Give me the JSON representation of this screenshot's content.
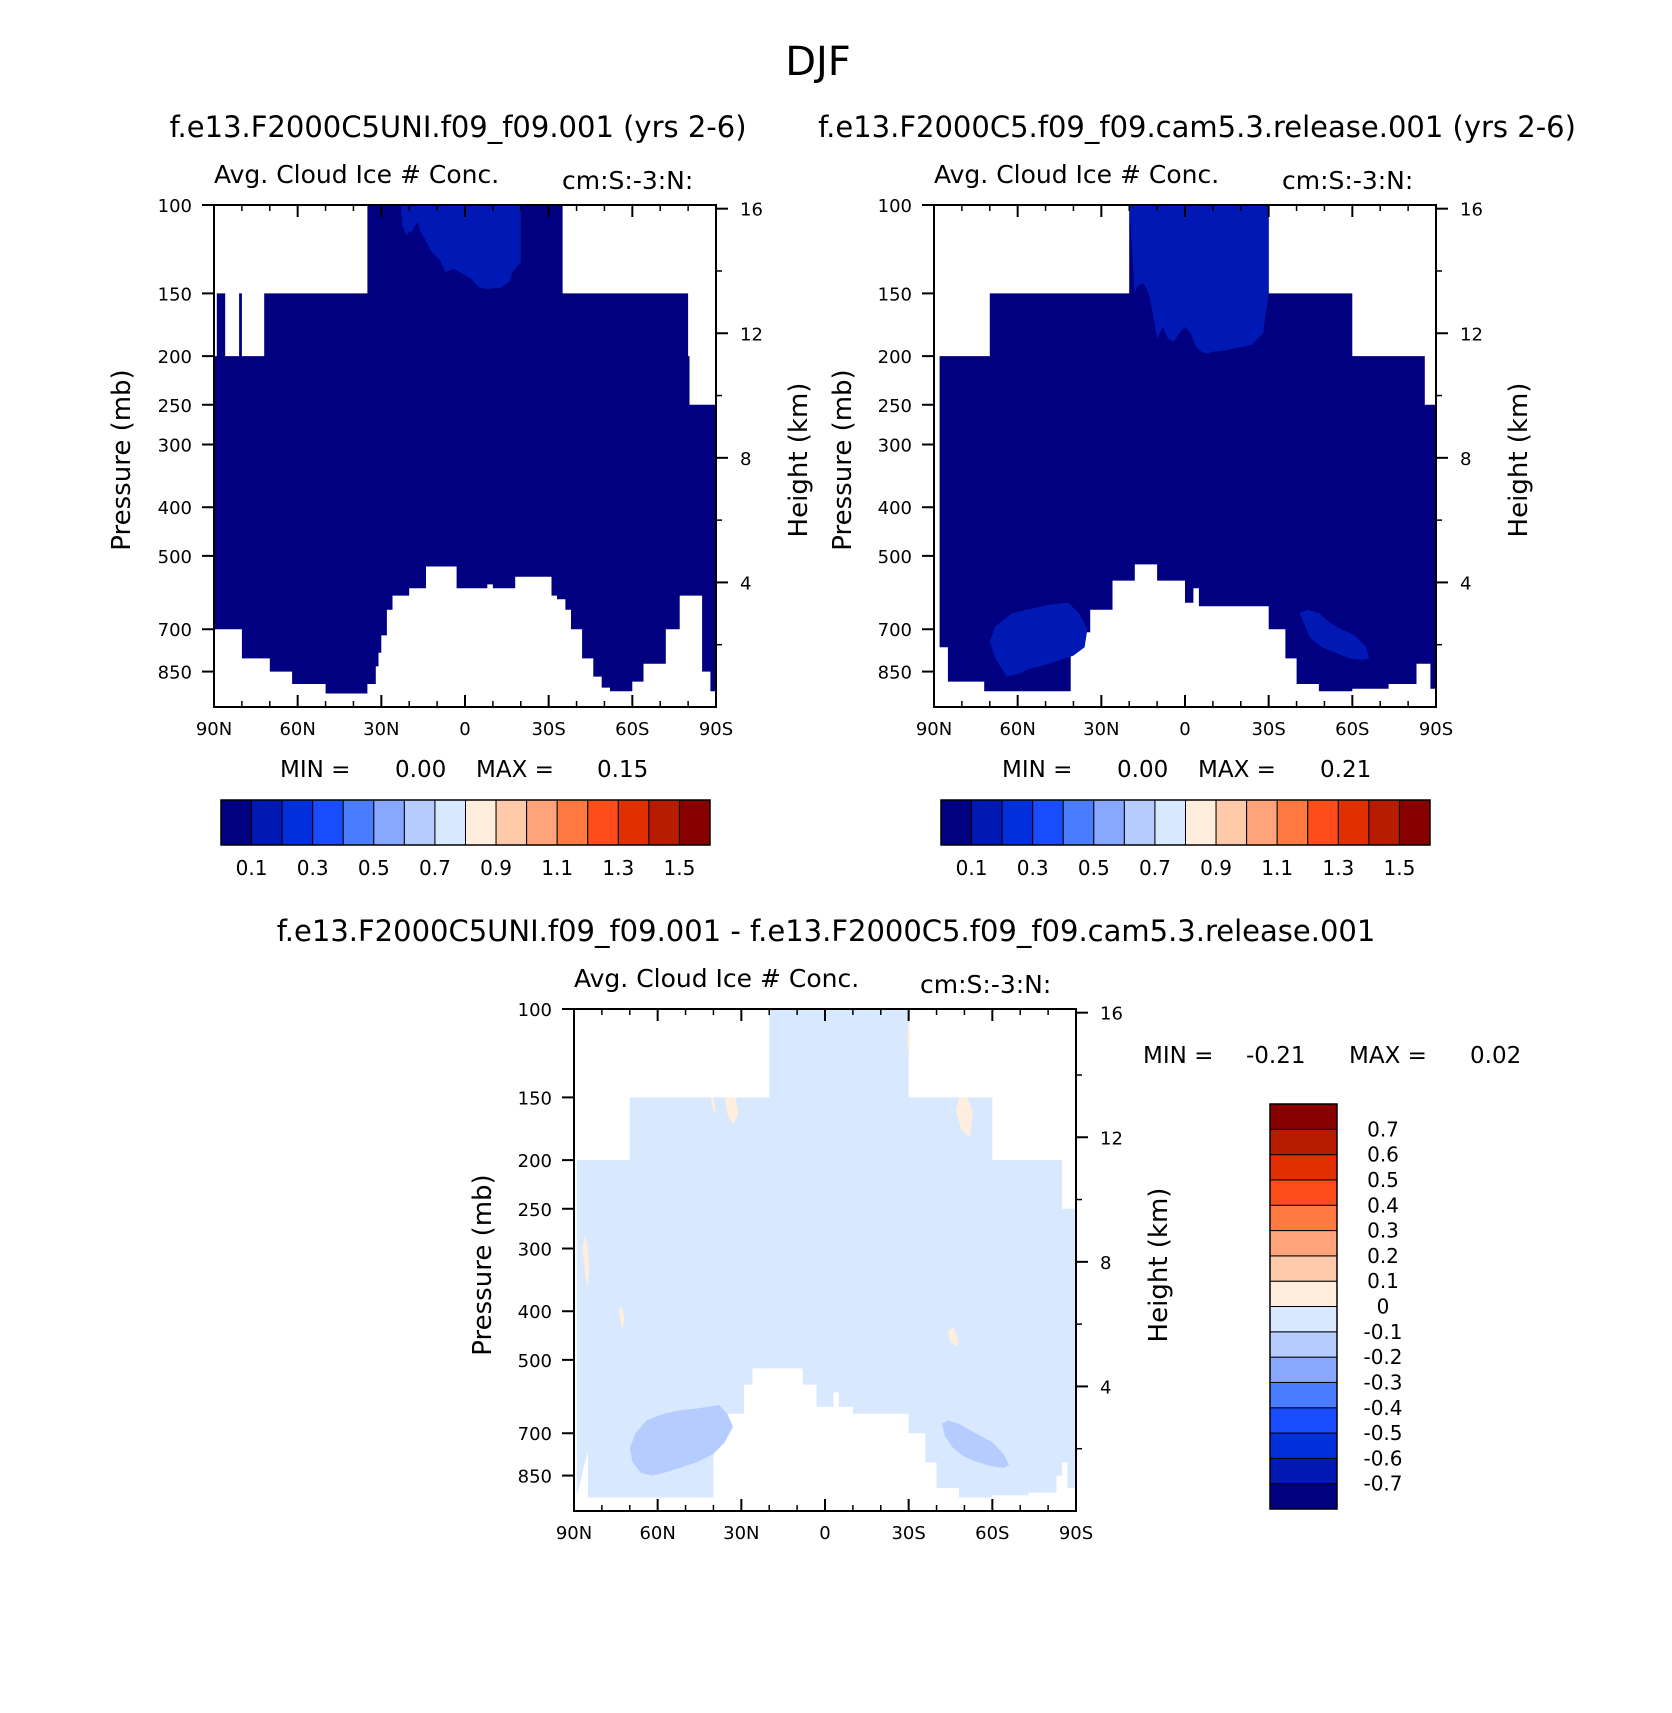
{
  "main_title": "DJF",
  "colors": {
    "white": "#ffffff",
    "abs_palette": [
      "#000080",
      "#0018b4",
      "#0030dc",
      "#1a4cff",
      "#4a7cff",
      "#88a8ff",
      "#b6ccff",
      "#d8e8ff",
      "#ffeedd",
      "#ffcaaa",
      "#ffa47a",
      "#ff7a40",
      "#ff4c1a",
      "#e03000",
      "#b81c00",
      "#880000"
    ],
    "diff_palette": [
      "#000080",
      "#0018b4",
      "#0030dc",
      "#1a4cff",
      "#4a7cff",
      "#88a8ff",
      "#b6ccff",
      "#d8e8ff",
      "#ffeedd",
      "#ffcaaa",
      "#ffa47a",
      "#ff7a40",
      "#ff4c1a",
      "#e03000",
      "#b81c00",
      "#880000"
    ]
  },
  "chart_data": [
    {
      "type": "heatmap",
      "name": "test-case",
      "panel_title": "f.e13.F2000C5UNI.f09_f09.001 (yrs 2-6)",
      "title": "Avg. Cloud Ice # Conc.",
      "units": "cm:S:-3:N:",
      "xlabel": "",
      "ylabel": "Pressure (mb)",
      "ylabel_right": "Height (km)",
      "x_ticks": [
        "90N",
        "60N",
        "30N",
        "0",
        "30S",
        "60S",
        "90S"
      ],
      "x_tick_values": [
        90,
        60,
        30,
        0,
        -30,
        -60,
        -90
      ],
      "xlim": [
        90,
        -90
      ],
      "y_ticks": [
        "100",
        "150",
        "200",
        "250",
        "300",
        "400",
        "500",
        "700",
        "850"
      ],
      "y_tick_values": [
        100,
        150,
        200,
        250,
        300,
        400,
        500,
        700,
        850
      ],
      "ylim": [
        100,
        1000
      ],
      "yscale": "log",
      "height_ticks": [
        "16",
        "12",
        "8",
        "4"
      ],
      "height_tick_values": [
        16,
        12,
        8,
        4
      ],
      "stats": {
        "min_label": "MIN =",
        "min": "0.00",
        "max_label": "MAX =",
        "max": "0.15"
      },
      "colorbar": {
        "orientation": "horizontal",
        "levels": [
          0.0,
          0.1,
          0.2,
          0.3,
          0.4,
          0.5,
          0.6,
          0.7,
          0.8,
          0.9,
          1.0,
          1.1,
          1.2,
          1.3,
          1.4,
          1.5
        ],
        "labels": [
          "0.1",
          "0.3",
          "0.5",
          "0.7",
          "0.9",
          "1.1",
          "1.3",
          "1.5"
        ]
      },
      "regions": [
        {
          "value": 0.05,
          "lat": [
            90,
            89,
            89,
            86,
            86,
            81,
            81,
            80,
            80,
            72,
            72,
            35,
            35,
            10,
            10,
            -35,
            -35,
            -80,
            -80,
            -80.5,
            -80.5,
            -84,
            -84,
            -90,
            -90,
            -88,
            -88,
            -85,
            -85,
            -77,
            -77,
            -72,
            -72,
            -64,
            -64,
            -60,
            -60,
            -52,
            -52,
            -49,
            -49,
            -46,
            -46,
            -42,
            -42,
            -38,
            -38,
            -36,
            -36,
            -33,
            -33,
            -31,
            -31,
            -26,
            -26,
            -18,
            -18,
            -10,
            -10,
            -8,
            -8,
            -4,
            -4,
            3,
            3,
            14,
            14,
            20,
            20,
            26,
            26,
            28,
            28,
            30,
            30,
            31,
            31,
            32,
            32,
            35,
            35,
            50,
            50,
            62,
            62,
            70,
            70,
            80,
            80,
            90
          ],
          "p": [
            200,
            200,
            150,
            150,
            200,
            200,
            150,
            150,
            200,
            200,
            150,
            150,
            100,
            100,
            100,
            100,
            150,
            150,
            200,
            200,
            250,
            250,
            250,
            250,
            930,
            930,
            850,
            850,
            600,
            600,
            700,
            700,
            820,
            820,
            890,
            890,
            930,
            930,
            915,
            915,
            870,
            870,
            800,
            800,
            700,
            700,
            640,
            640,
            610,
            610,
            600,
            600,
            550,
            550,
            550,
            550,
            580,
            580,
            570,
            570,
            580,
            580,
            580,
            580,
            525,
            525,
            580,
            580,
            600,
            600,
            640,
            640,
            720,
            720,
            780,
            780,
            830,
            830,
            900,
            900,
            940,
            940,
            900,
            900,
            850,
            850,
            800,
            800,
            700,
            700
          ]
        },
        {
          "value": 0.15,
          "lat": [
            23,
            22.5,
            21,
            20,
            19,
            17,
            16,
            14,
            12,
            9,
            7,
            4,
            1,
            -2,
            -5,
            -8,
            -13,
            -16,
            -17,
            -20,
            -20,
            -10,
            0,
            10,
            20,
            23
          ],
          "p": [
            100,
            110,
            115,
            113,
            113,
            108,
            113,
            118,
            124,
            129,
            136,
            134,
            137,
            140,
            146,
            147,
            146,
            142,
            136,
            130,
            100,
            100,
            100,
            100,
            100,
            100
          ]
        }
      ]
    },
    {
      "type": "heatmap",
      "name": "control-case",
      "panel_title": "f.e13.F2000C5.f09_f09.cam5.3.release.001 (yrs 2-6)",
      "title": "Avg. Cloud Ice # Conc.",
      "units": "cm:S:-3:N:",
      "xlabel": "",
      "ylabel": "Pressure (mb)",
      "ylabel_right": "Height (km)",
      "x_ticks": [
        "90N",
        "60N",
        "30N",
        "0",
        "30S",
        "60S",
        "90S"
      ],
      "x_tick_values": [
        90,
        60,
        30,
        0,
        -30,
        -60,
        -90
      ],
      "xlim": [
        90,
        -90
      ],
      "y_ticks": [
        "100",
        "150",
        "200",
        "250",
        "300",
        "400",
        "500",
        "700",
        "850"
      ],
      "y_tick_values": [
        100,
        150,
        200,
        250,
        300,
        400,
        500,
        700,
        850
      ],
      "ylim": [
        100,
        1000
      ],
      "yscale": "log",
      "height_ticks": [
        "16",
        "12",
        "8",
        "4"
      ],
      "height_tick_values": [
        16,
        12,
        8,
        4
      ],
      "stats": {
        "min_label": "MIN =",
        "min": "0.00",
        "max_label": "MAX =",
        "max": "0.21"
      },
      "colorbar": {
        "orientation": "horizontal",
        "levels": [
          0.0,
          0.1,
          0.2,
          0.3,
          0.4,
          0.5,
          0.6,
          0.7,
          0.8,
          0.9,
          1.0,
          1.1,
          1.2,
          1.3,
          1.4,
          1.5
        ],
        "labels": [
          "0.1",
          "0.3",
          "0.5",
          "0.7",
          "0.9",
          "1.1",
          "1.3",
          "1.5"
        ]
      },
      "regions": [
        {
          "value": 0.05,
          "lat": [
            90,
            88,
            88,
            70,
            70,
            20,
            20,
            -30,
            -30,
            -60,
            -60,
            -86,
            -86,
            -90,
            -90,
            -88,
            -88,
            -83,
            -83,
            -73,
            -73,
            -60,
            -60,
            -48,
            -48,
            -40,
            -40,
            -36,
            -36,
            -30,
            -30,
            -5,
            -5,
            -3,
            -3,
            0,
            0,
            10,
            10,
            15,
            15,
            18,
            18,
            26,
            26,
            34,
            34,
            41,
            41,
            72,
            72,
            85,
            85,
            88,
            88,
            90
          ],
          "p": [
            930,
            930,
            200,
            200,
            150,
            150,
            100,
            100,
            150,
            150,
            200,
            200,
            250,
            250,
            920,
            920,
            820,
            820,
            900,
            900,
            920,
            920,
            930,
            930,
            900,
            900,
            800,
            800,
            700,
            700,
            630,
            630,
            580,
            580,
            620,
            620,
            560,
            560,
            520,
            520,
            520,
            520,
            560,
            560,
            640,
            640,
            710,
            710,
            930,
            930,
            890,
            890,
            760,
            760,
            930,
            930
          ]
        },
        {
          "value": 0.15,
          "lat": [
            20,
            18,
            17,
            15,
            13,
            11,
            10,
            8,
            6,
            4,
            2,
            0,
            -2,
            -4,
            -6,
            -8,
            -10,
            -14,
            -18,
            -24,
            -28,
            -30,
            -30,
            -20,
            -10,
            0,
            10,
            20
          ],
          "p": [
            100,
            150,
            145,
            143,
            150,
            170,
            185,
            175,
            185,
            187,
            180,
            175,
            180,
            192,
            196,
            198,
            196,
            195,
            193,
            190,
            180,
            150,
            100,
            100,
            100,
            100,
            100,
            100
          ]
        },
        {
          "value": 0.15,
          "lat": [
            70,
            68,
            62,
            54,
            48,
            42,
            38,
            35,
            36,
            40,
            46,
            52,
            56,
            60,
            64,
            68,
            70
          ],
          "p": [
            740,
            690,
            650,
            635,
            625,
            620,
            650,
            700,
            760,
            790,
            810,
            830,
            840,
            860,
            870,
            800,
            740
          ]
        },
        {
          "value": 0.15,
          "lat": [
            -41,
            -44,
            -48,
            -52,
            -56,
            -61,
            -65,
            -66,
            -64,
            -59,
            -54,
            -49,
            -45,
            -41
          ],
          "p": [
            650,
            640,
            650,
            680,
            700,
            720,
            760,
            800,
            805,
            800,
            780,
            760,
            730,
            650
          ]
        }
      ]
    },
    {
      "type": "heatmap",
      "name": "difference",
      "panel_title": "f.e13.F2000C5UNI.f09_f09.001 - f.e13.F2000C5.f09_f09.cam5.3.release.001",
      "title": "Avg. Cloud Ice # Conc.",
      "units": "cm:S:-3:N:",
      "xlabel": "",
      "ylabel": "Pressure (mb)",
      "ylabel_right": "Height (km)",
      "x_ticks": [
        "90N",
        "60N",
        "30N",
        "0",
        "30S",
        "60S",
        "90S"
      ],
      "x_tick_values": [
        90,
        60,
        30,
        0,
        -30,
        -60,
        -90
      ],
      "xlim": [
        90,
        -90
      ],
      "y_ticks": [
        "100",
        "150",
        "200",
        "250",
        "300",
        "400",
        "500",
        "700",
        "850"
      ],
      "y_tick_values": [
        100,
        150,
        200,
        250,
        300,
        400,
        500,
        700,
        850
      ],
      "ylim": [
        100,
        1000
      ],
      "yscale": "log",
      "height_ticks": [
        "16",
        "12",
        "8",
        "4"
      ],
      "height_tick_values": [
        16,
        12,
        8,
        4
      ],
      "stats": {
        "min_label": "MIN =",
        "min": "-0.21",
        "max_label": "MAX =",
        "max": "0.02"
      },
      "colorbar": {
        "orientation": "vertical",
        "levels": [
          -0.8,
          -0.7,
          -0.6,
          -0.5,
          -0.4,
          -0.3,
          -0.2,
          -0.1,
          0,
          0.1,
          0.2,
          0.3,
          0.4,
          0.5,
          0.6,
          0.7
        ],
        "labels": [
          "-0.7",
          "-0.6",
          "-0.5",
          "-0.4",
          "-0.3",
          "-0.2",
          "-0.1",
          "0",
          "0.1",
          "0.2",
          "0.3",
          "0.4",
          "0.5",
          "0.6",
          "0.7"
        ]
      },
      "regions": [
        {
          "value": -0.05,
          "lat": [
            89,
            89,
            70,
            70,
            20,
            20,
            -30,
            -30,
            -60,
            -60,
            -85,
            -85,
            -90,
            -90,
            -87,
            -87,
            -85,
            -85,
            -83,
            -83,
            -73,
            -73,
            -60,
            -60,
            -48,
            -48,
            -40,
            -40,
            -36,
            -36,
            -30,
            -30,
            -10,
            -10,
            -5,
            -5,
            -3,
            -3,
            3,
            3,
            8,
            8,
            18,
            18,
            26,
            26,
            29,
            29,
            40,
            40,
            85,
            85,
            89
          ],
          "p": [
            930,
            200,
            200,
            150,
            150,
            100,
            100,
            150,
            150,
            200,
            200,
            250,
            250,
            900,
            900,
            800,
            800,
            850,
            850,
            920,
            920,
            930,
            930,
            940,
            940,
            900,
            900,
            800,
            800,
            700,
            700,
            640,
            640,
            620,
            620,
            580,
            580,
            620,
            620,
            560,
            560,
            520,
            520,
            520,
            520,
            560,
            560,
            640,
            640,
            940,
            940,
            760,
            930
          ]
        },
        {
          "value": -0.15,
          "lat": [
            70,
            68,
            64,
            58,
            52,
            46,
            42,
            38,
            35,
            33,
            36,
            40,
            46,
            52,
            58,
            62,
            66,
            69,
            70
          ],
          "p": [
            750,
            700,
            660,
            640,
            630,
            625,
            620,
            615,
            640,
            680,
            730,
            770,
            800,
            820,
            840,
            850,
            840,
            800,
            750
          ]
        },
        {
          "value": -0.15,
          "lat": [
            -42,
            -44,
            -48,
            -52,
            -56,
            -60,
            -64,
            -66,
            -64,
            -60,
            -55,
            -50,
            -46,
            -43,
            -42
          ],
          "p": [
            670,
            660,
            670,
            690,
            710,
            730,
            770,
            810,
            820,
            815,
            800,
            780,
            750,
            710,
            670
          ]
        },
        {
          "value": 0.05,
          "lat": [
            86,
            85,
            84.5,
            85,
            86,
            87,
            86
          ],
          "p": [
            280,
            300,
            330,
            360,
            340,
            300,
            280
          ]
        },
        {
          "value": 0.05,
          "lat": [
            73,
            72,
            72.5,
            74,
            73
          ],
          "p": [
            390,
            410,
            440,
            400,
            390
          ]
        },
        {
          "value": 0.05,
          "lat": [
            -44,
            -45,
            -47,
            -48,
            -46,
            -44
          ],
          "p": [
            440,
            460,
            470,
            460,
            430,
            440
          ]
        },
        {
          "value": 0.05,
          "lat": [
            -48,
            -47,
            -49,
            -52,
            -53,
            -51,
            -48
          ],
          "p": [
            150,
            160,
            175,
            180,
            160,
            150,
            150
          ]
        },
        {
          "value": 0.05,
          "lat": [
            36,
            35,
            33,
            31,
            32,
            34,
            36
          ],
          "p": [
            150,
            162,
            170,
            162,
            150,
            150,
            150
          ]
        },
        {
          "value": 0.05,
          "lat": [
            41,
            40,
            39,
            40,
            41
          ],
          "p": [
            150,
            160,
            160,
            150,
            150
          ]
        },
        {
          "value": 0.05,
          "lat": [
            -30,
            -29.5,
            -30,
            -30.5,
            -30
          ],
          "p": [
            100,
            115,
            125,
            115,
            100
          ]
        }
      ]
    }
  ]
}
